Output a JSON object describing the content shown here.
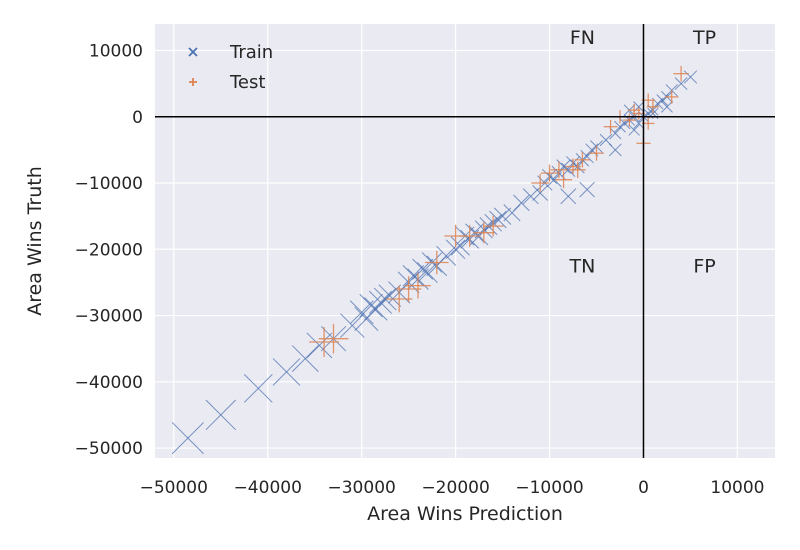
{
  "chart_data": {
    "type": "scatter",
    "xlabel": "Area Wins Prediction",
    "ylabel": "Area Wins Truth",
    "xlim": [
      -52000,
      14000
    ],
    "ylim": [
      -51500,
      14000
    ],
    "xticks": [
      -50000,
      -40000,
      -30000,
      -20000,
      -10000,
      0,
      10000
    ],
    "xtick_labels": [
      "−50000",
      "−40000",
      "−30000",
      "−20000",
      "−10000",
      "0",
      "10000"
    ],
    "yticks": [
      10000,
      0,
      -10000,
      -20000,
      -30000,
      -40000,
      -50000
    ],
    "ytick_labels": [
      "10000",
      "0",
      "−10000",
      "−20000",
      "−30000",
      "−40000",
      "−50000"
    ],
    "reference_lines": {
      "x": 0,
      "y": 0
    },
    "quadrant_labels": [
      {
        "text": "FN",
        "x": -6500,
        "y": 11000
      },
      {
        "text": "TP",
        "x": 6500,
        "y": 11000
      },
      {
        "text": "TN",
        "x": -6500,
        "y": -23500
      },
      {
        "text": "FP",
        "x": 6500,
        "y": -23500
      }
    ],
    "legend": {
      "position": "top-left",
      "entries": [
        "Train",
        "Test"
      ]
    },
    "grid": true,
    "colors": {
      "train": "#4c72b0",
      "test": "#dd8452",
      "background": "#eaeaf2",
      "grid": "#ffffff"
    },
    "series": [
      {
        "name": "Train",
        "marker": "x",
        "points": [
          [
            -48500,
            -48500
          ],
          [
            -45000,
            -45000
          ],
          [
            -41000,
            -41000
          ],
          [
            -38000,
            -38500
          ],
          [
            -36000,
            -36500
          ],
          [
            -34500,
            -34500
          ],
          [
            -33000,
            -33500
          ],
          [
            -31000,
            -31500
          ],
          [
            -30000,
            -29500
          ],
          [
            -29500,
            -30500
          ],
          [
            -29000,
            -28500
          ],
          [
            -28500,
            -29000
          ],
          [
            -28000,
            -28000
          ],
          [
            -27500,
            -27500
          ],
          [
            -27000,
            -27000
          ],
          [
            -26000,
            -26500
          ],
          [
            -25000,
            -25000
          ],
          [
            -24500,
            -24000
          ],
          [
            -24000,
            -24500
          ],
          [
            -23500,
            -23000
          ],
          [
            -23000,
            -23500
          ],
          [
            -22500,
            -22000
          ],
          [
            -22000,
            -22500
          ],
          [
            -21000,
            -21000
          ],
          [
            -20000,
            -20000
          ],
          [
            -19500,
            -19500
          ],
          [
            -19000,
            -18000
          ],
          [
            -18500,
            -18500
          ],
          [
            -18000,
            -17500
          ],
          [
            -17500,
            -18000
          ],
          [
            -17000,
            -17000
          ],
          [
            -16500,
            -16500
          ],
          [
            -16000,
            -16000
          ],
          [
            -15500,
            -15500
          ],
          [
            -15000,
            -15000
          ],
          [
            -14000,
            -14500
          ],
          [
            -13000,
            -13000
          ],
          [
            -12000,
            -12000
          ],
          [
            -11000,
            -11500
          ],
          [
            -10500,
            -10000
          ],
          [
            -10000,
            -9000
          ],
          [
            -9500,
            -9500
          ],
          [
            -9000,
            -8500
          ],
          [
            -8500,
            -7500
          ],
          [
            -8000,
            -8000
          ],
          [
            -7500,
            -7000
          ],
          [
            -7000,
            -7500
          ],
          [
            -6500,
            -6500
          ],
          [
            -6000,
            -6000
          ],
          [
            -5500,
            -5000
          ],
          [
            -5000,
            -4500
          ],
          [
            -4000,
            -3500
          ],
          [
            -3000,
            -2500
          ],
          [
            -2500,
            -1500
          ],
          [
            -2000,
            -1000
          ],
          [
            -1500,
            -500
          ],
          [
            -1000,
            0
          ],
          [
            -500,
            -1000
          ],
          [
            0,
            0
          ],
          [
            500,
            500
          ],
          [
            1000,
            1000
          ],
          [
            1500,
            2000
          ],
          [
            2000,
            2500
          ],
          [
            2500,
            3000
          ],
          [
            3000,
            4000
          ],
          [
            4000,
            5000
          ],
          [
            5000,
            6000
          ],
          [
            -6000,
            -11000
          ],
          [
            -8000,
            -12000
          ],
          [
            -3000,
            -5000
          ],
          [
            -1000,
            -2000
          ],
          [
            1000,
            500
          ],
          [
            2500,
            1500
          ],
          [
            -500,
            1500
          ],
          [
            -1500,
            1000
          ]
        ]
      },
      {
        "name": "Test",
        "marker": "+",
        "points": [
          [
            -34000,
            -34000
          ],
          [
            -33000,
            -33500
          ],
          [
            -26000,
            -27500
          ],
          [
            -25000,
            -26000
          ],
          [
            -24000,
            -25500
          ],
          [
            -22000,
            -22000
          ],
          [
            -20000,
            -18000
          ],
          [
            -18500,
            -18000
          ],
          [
            -17000,
            -17500
          ],
          [
            -16000,
            -16500
          ],
          [
            -11000,
            -10000
          ],
          [
            -10000,
            -8500
          ],
          [
            -9000,
            -8000
          ],
          [
            -8500,
            -9500
          ],
          [
            -7500,
            -7500
          ],
          [
            -7000,
            -8000
          ],
          [
            -6500,
            -6500
          ],
          [
            -5000,
            -5500
          ],
          [
            -3500,
            -1500
          ],
          [
            -2500,
            0
          ],
          [
            -1500,
            -500
          ],
          [
            -500,
            500
          ],
          [
            0,
            0
          ],
          [
            500,
            -1000
          ],
          [
            0,
            -4000
          ],
          [
            1000,
            1500
          ],
          [
            3000,
            3000
          ],
          [
            4000,
            6500
          ],
          [
            -1000,
            1000
          ],
          [
            500,
            2500
          ]
        ]
      }
    ]
  }
}
